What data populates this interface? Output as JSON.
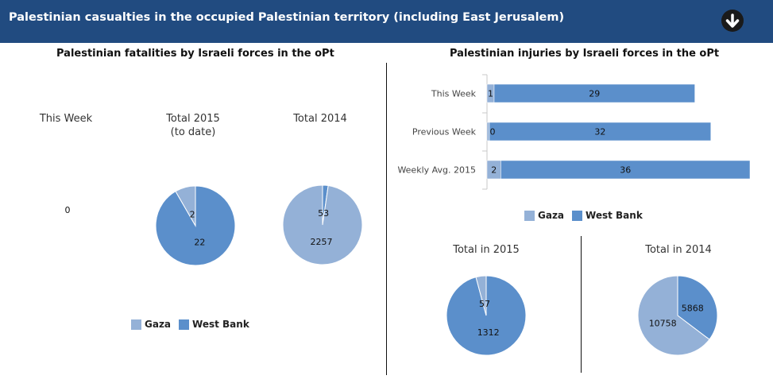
{
  "header": {
    "title": "Palestinian casualties in the occupied Palestinian territory (including East Jerusalem)"
  },
  "colors": {
    "gaza": "#94b1d7",
    "west_bank": "#5b8fcb",
    "header_bg": "#214b80"
  },
  "fatalities": {
    "title": "Palestinian fatalities by Israeli forces in the oPt",
    "this_week_label": "This Week",
    "this_week_value": "0",
    "total_2015_label_line1": "Total 2015",
    "total_2015_label_line2": "(to date)",
    "total_2014_label": "Total 2014",
    "legend": {
      "gaza": "Gaza",
      "west_bank": "West Bank"
    }
  },
  "injuries": {
    "title": "Palestinian injuries by Israeli forces in the oPt",
    "legend": {
      "gaza": "Gaza",
      "west_bank": "West Bank"
    },
    "total_2015_label": "Total in 2015",
    "total_2014_label": "Total in 2014"
  },
  "chart_data": [
    {
      "type": "pie",
      "title": "Total 2015 (to date)",
      "series": [
        {
          "name": "Gaza",
          "value": 2
        },
        {
          "name": "West Bank",
          "value": 22
        }
      ]
    },
    {
      "type": "pie",
      "title": "Total 2014",
      "series": [
        {
          "name": "Gaza",
          "value": 2257
        },
        {
          "name": "West Bank",
          "value": 53
        }
      ]
    },
    {
      "type": "bar",
      "orientation": "horizontal",
      "stacked": true,
      "title": "Palestinian injuries by Israeli forces in the oPt",
      "categories": [
        "This Week",
        "Previous Week",
        "Weekly Avg. 2015"
      ],
      "series": [
        {
          "name": "Gaza",
          "values": [
            1,
            0,
            2
          ]
        },
        {
          "name": "West Bank",
          "values": [
            29,
            32,
            36
          ]
        }
      ],
      "legend_position": "bottom"
    },
    {
      "type": "pie",
      "title": "Total in 2015",
      "series": [
        {
          "name": "Gaza",
          "value": 57
        },
        {
          "name": "West Bank",
          "value": 1312
        }
      ]
    },
    {
      "type": "pie",
      "title": "Total in 2014",
      "series": [
        {
          "name": "Gaza",
          "value": 10758
        },
        {
          "name": "West Bank",
          "value": 5868
        }
      ]
    }
  ]
}
